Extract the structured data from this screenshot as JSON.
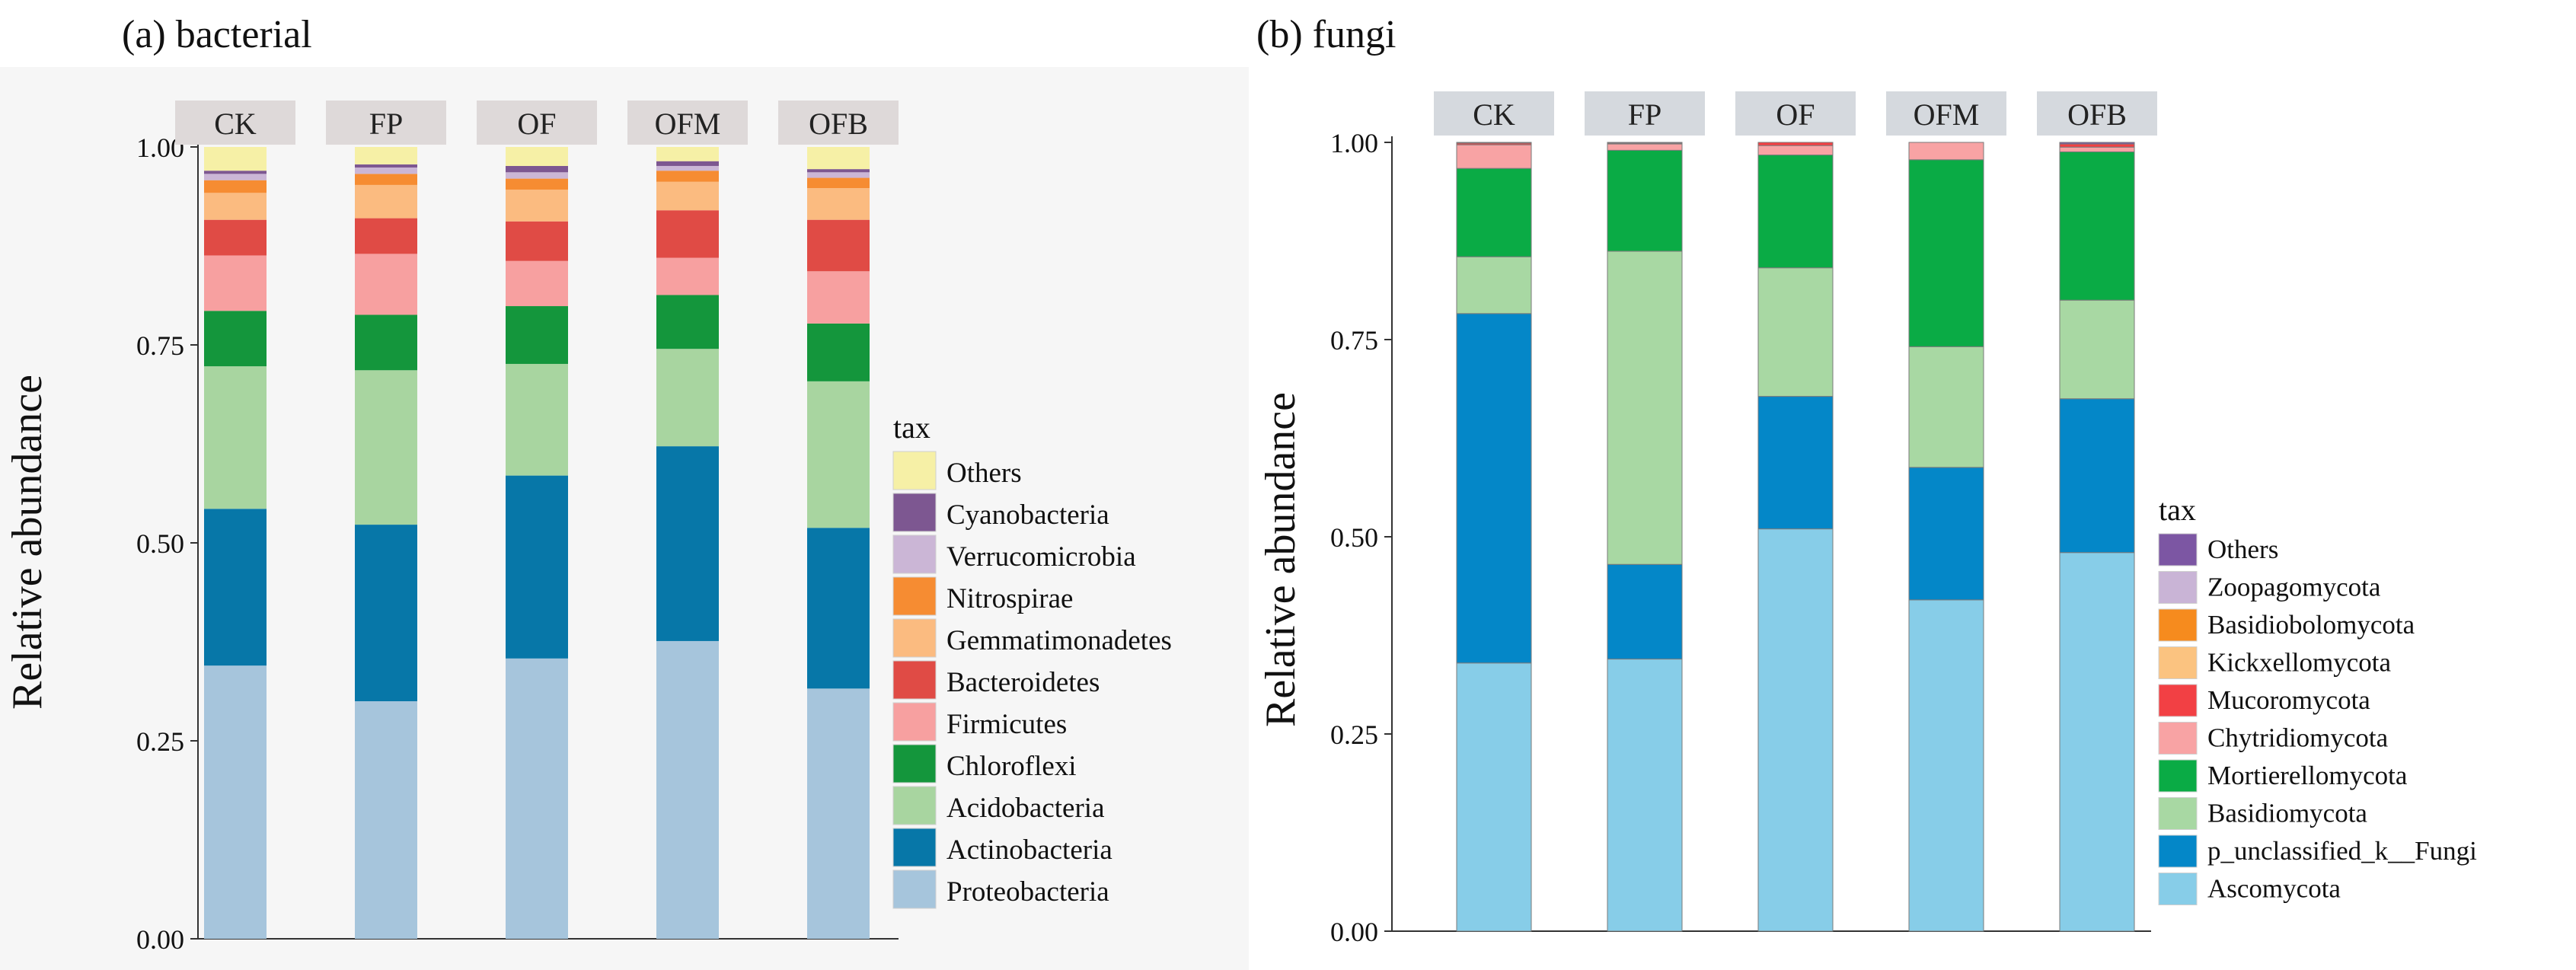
{
  "chart_data": [
    {
      "type": "bar",
      "stacked": true,
      "title": "(a)  bacterial",
      "xlabel": "",
      "ylabel": "Relative abundance",
      "ylim": [
        0,
        1
      ],
      "yticks": [
        "0.00",
        "0.25",
        "0.50",
        "0.75",
        "1.00"
      ],
      "ytick_values": [
        0,
        0.25,
        0.5,
        0.75,
        1.0
      ],
      "categories": [
        "CK",
        "FP",
        "OF",
        "OFM",
        "OFB"
      ],
      "legend_title": "tax",
      "series": [
        {
          "name": "Proteobacteria",
          "color": "#a6c5dc",
          "values": [
            0.345,
            0.3,
            0.354,
            0.376,
            0.316
          ]
        },
        {
          "name": "Actinobacteria",
          "color": "#0777a8",
          "values": [
            0.198,
            0.223,
            0.231,
            0.246,
            0.203
          ]
        },
        {
          "name": "Acidobacteria",
          "color": "#a8d5a0",
          "values": [
            0.18,
            0.195,
            0.141,
            0.123,
            0.185
          ]
        },
        {
          "name": "Chloroflexi",
          "color": "#14963c",
          "values": [
            0.07,
            0.07,
            0.073,
            0.068,
            0.073
          ]
        },
        {
          "name": "Firmicutes",
          "color": "#f7a0a0",
          "values": [
            0.07,
            0.077,
            0.057,
            0.047,
            0.066
          ]
        },
        {
          "name": "Bacteroidetes",
          "color": "#e04b45",
          "values": [
            0.045,
            0.045,
            0.05,
            0.06,
            0.065
          ]
        },
        {
          "name": "Gemmatimonadetes",
          "color": "#fbbb80",
          "values": [
            0.034,
            0.042,
            0.04,
            0.036,
            0.04
          ]
        },
        {
          "name": "Nitrospirae",
          "color": "#f68c32",
          "values": [
            0.016,
            0.014,
            0.014,
            0.014,
            0.013
          ]
        },
        {
          "name": "Verrucomicrobia",
          "color": "#cbb6d6",
          "values": [
            0.008,
            0.008,
            0.008,
            0.006,
            0.007
          ]
        },
        {
          "name": "Cyanobacteria",
          "color": "#7d5791",
          "values": [
            0.004,
            0.004,
            0.008,
            0.006,
            0.004
          ]
        },
        {
          "name": "Others",
          "color": "#f6f0a6",
          "values": [
            0.03,
            0.022,
            0.024,
            0.018,
            0.028
          ]
        }
      ]
    },
    {
      "type": "bar",
      "stacked": true,
      "title": "(b) fungi",
      "xlabel": "",
      "ylabel": "Relative abundance",
      "ylim": [
        0,
        1
      ],
      "yticks": [
        "0.00",
        "0.25",
        "0.50",
        "0.75",
        "1.00"
      ],
      "ytick_values": [
        0,
        0.25,
        0.5,
        0.75,
        1.0
      ],
      "categories": [
        "CK",
        "FP",
        "OF",
        "OFM",
        "OFB"
      ],
      "legend_title": "tax",
      "series": [
        {
          "name": "Ascomycota",
          "color": "#87cde8",
          "values": [
            0.34,
            0.345,
            0.51,
            0.42,
            0.48
          ]
        },
        {
          "name": "p_unclassified_k__Fungi",
          "color": "#0487c8",
          "values": [
            0.443,
            0.12,
            0.168,
            0.168,
            0.195
          ]
        },
        {
          "name": "Basidiomycota",
          "color": "#a8d8a3",
          "values": [
            0.072,
            0.397,
            0.163,
            0.153,
            0.125
          ]
        },
        {
          "name": "Mortierellomycota",
          "color": "#0aab45",
          "values": [
            0.112,
            0.128,
            0.143,
            0.237,
            0.188
          ]
        },
        {
          "name": "Chytridiomycota",
          "color": "#f8a3a4",
          "values": [
            0.03,
            0.008,
            0.012,
            0.022,
            0.006
          ]
        },
        {
          "name": "Mucoromycota",
          "color": "#f24044",
          "values": [
            0.002,
            0.001,
            0.004,
            0.0,
            0.004
          ]
        },
        {
          "name": "Kickxellomycota",
          "color": "#fbc380",
          "values": [
            0.0,
            0.0,
            0.0,
            0.0,
            0.0
          ]
        },
        {
          "name": "Basidiobolomycota",
          "color": "#f68b1e",
          "values": [
            0.0,
            0.0,
            0.0,
            0.0,
            0.0
          ]
        },
        {
          "name": "Zoopagomycota",
          "color": "#c9b4d6",
          "values": [
            0.0,
            0.0,
            0.0,
            0.0,
            0.0
          ]
        },
        {
          "name": "Others",
          "color": "#7c56a3",
          "values": [
            0.001,
            0.001,
            0.0,
            0.0,
            0.002
          ]
        }
      ]
    }
  ]
}
